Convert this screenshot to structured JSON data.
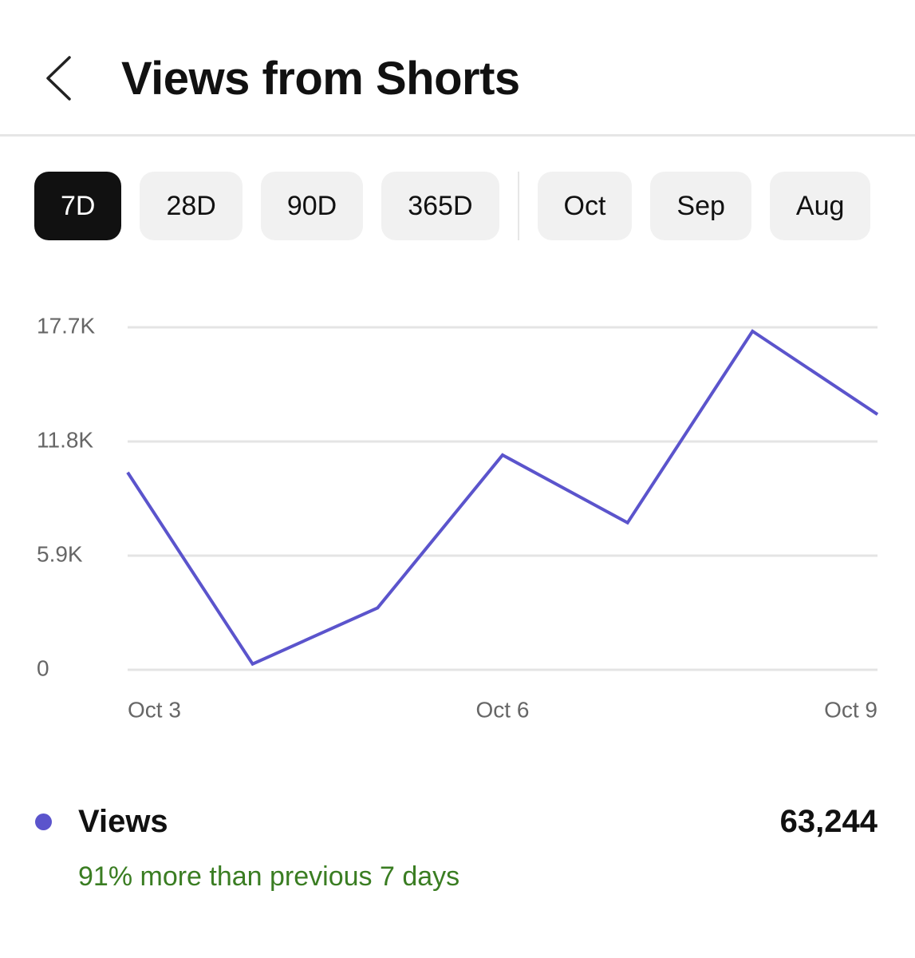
{
  "header": {
    "title": "Views from Shorts"
  },
  "tabs": {
    "ranges": [
      "7D",
      "28D",
      "90D",
      "365D"
    ],
    "months": [
      "Oct",
      "Sep",
      "Aug"
    ],
    "selected": 0
  },
  "chart_data": {
    "type": "line",
    "categories": [
      "Oct 3",
      null,
      null,
      "Oct 6",
      null,
      null,
      "Oct 9"
    ],
    "series": [
      {
        "name": "Views",
        "color": "#5b54cc",
        "values": [
          10200,
          300,
          3200,
          11100,
          7600,
          17500,
          13200
        ]
      }
    ],
    "ylim": [
      0,
      17700
    ],
    "yticks": [
      0,
      {
        "value": 5900,
        "label": "5.9K"
      },
      {
        "value": 11800,
        "label": "11.8K"
      },
      {
        "value": 17700,
        "label": "17.7K"
      }
    ],
    "grid": true,
    "total": "63,244",
    "comparison": "91% more than previous 7 days",
    "comparison_color": "#3a7d22"
  }
}
